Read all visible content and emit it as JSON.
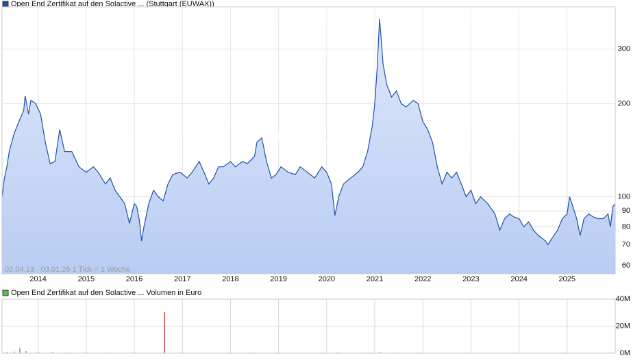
{
  "chart_data": [
    {
      "type": "line",
      "title": "Open End Zertifikat auf den Solactive ... (Stuttgart (EUWAX))",
      "annotation": "02.04.13 - 03.01.26   1 Tick = 1 Woche",
      "watermark": "ARIVA.DE",
      "color": "#1f4fa8",
      "fill": "#b9cdf3",
      "yscale": "log",
      "grid": true,
      "xlim": [
        2013.25,
        2026.0
      ],
      "xticks": [
        2014,
        2015,
        2016,
        2017,
        2018,
        2019,
        2020,
        2021,
        2022,
        2023,
        2024,
        2025
      ],
      "ylim": [
        56.4,
        411
      ],
      "yticks": [
        60,
        70,
        80,
        90,
        100,
        200,
        300
      ],
      "x": [
        2013.25,
        2013.3,
        2013.35,
        2013.4,
        2013.5,
        2013.6,
        2013.7,
        2013.73,
        2013.8,
        2013.85,
        2013.95,
        2014.05,
        2014.15,
        2014.25,
        2014.35,
        2014.45,
        2014.55,
        2014.7,
        2014.85,
        2015.0,
        2015.15,
        2015.25,
        2015.4,
        2015.5,
        2015.6,
        2015.7,
        2015.8,
        2015.9,
        2016.0,
        2016.05,
        2016.1,
        2016.15,
        2016.2,
        2016.3,
        2016.4,
        2016.5,
        2016.6,
        2016.7,
        2016.8,
        2016.95,
        2017.1,
        2017.2,
        2017.35,
        2017.45,
        2017.55,
        2017.65,
        2017.75,
        2017.85,
        2018.0,
        2018.1,
        2018.25,
        2018.35,
        2018.5,
        2018.55,
        2018.65,
        2018.75,
        2018.85,
        2018.95,
        2019.05,
        2019.2,
        2019.35,
        2019.45,
        2019.6,
        2019.75,
        2019.9,
        2020.0,
        2020.1,
        2020.17,
        2020.25,
        2020.35,
        2020.5,
        2020.65,
        2020.75,
        2020.85,
        2020.95,
        2021.0,
        2021.05,
        2021.1,
        2021.13,
        2021.17,
        2021.25,
        2021.35,
        2021.45,
        2021.55,
        2021.65,
        2021.8,
        2021.9,
        2022.0,
        2022.1,
        2022.2,
        2022.3,
        2022.4,
        2022.5,
        2022.6,
        2022.7,
        2022.8,
        2022.9,
        2023.0,
        2023.1,
        2023.2,
        2023.35,
        2023.5,
        2023.6,
        2023.7,
        2023.8,
        2023.9,
        2024.0,
        2024.1,
        2024.2,
        2024.3,
        2024.4,
        2024.55,
        2024.6,
        2024.7,
        2024.8,
        2024.9,
        2025.0,
        2025.05,
        2025.1,
        2025.2,
        2025.27,
        2025.35,
        2025.45,
        2025.55,
        2025.65,
        2025.75,
        2025.85,
        2025.9,
        2025.95,
        2026.0
      ],
      "values": [
        100,
        115,
        125,
        140,
        160,
        175,
        190,
        212,
        185,
        205,
        200,
        185,
        150,
        128,
        130,
        165,
        140,
        140,
        125,
        120,
        125,
        120,
        110,
        115,
        105,
        100,
        95,
        82,
        95,
        93,
        85,
        72,
        80,
        95,
        105,
        100,
        97,
        110,
        118,
        120,
        115,
        120,
        130,
        120,
        110,
        115,
        125,
        125,
        130,
        125,
        130,
        128,
        135,
        150,
        155,
        130,
        115,
        118,
        125,
        120,
        118,
        125,
        120,
        115,
        125,
        120,
        110,
        87,
        100,
        110,
        115,
        120,
        125,
        140,
        170,
        200,
        260,
        376,
        330,
        270,
        230,
        210,
        220,
        200,
        195,
        205,
        200,
        175,
        165,
        150,
        125,
        110,
        120,
        115,
        120,
        110,
        100,
        105,
        95,
        100,
        95,
        88,
        78,
        85,
        88,
        86,
        85,
        80,
        83,
        78,
        75,
        72,
        70,
        74,
        78,
        85,
        88,
        100,
        95,
        85,
        75,
        85,
        88,
        86,
        85,
        85,
        88,
        80,
        93,
        95
      ]
    },
    {
      "type": "bar",
      "title": "Open End Zertifikat auf den Solactive ... Volumen in Euro",
      "color": "#3aa63a",
      "grid": true,
      "xlim": [
        2013.25,
        2026.0
      ],
      "xticks": [
        2014,
        2015,
        2016,
        2017,
        2018,
        2019,
        2020,
        2021,
        2022,
        2023,
        2024,
        2025
      ],
      "ylim": [
        0,
        40000000
      ],
      "yticks": [
        {
          "value": 0,
          "label": "0M"
        },
        {
          "value": 20000000,
          "label": "20M"
        },
        {
          "value": 40000000,
          "label": "40M"
        }
      ],
      "x": [
        2013.35,
        2013.5,
        2013.62,
        2013.75,
        2014.0,
        2014.3,
        2014.6,
        2015.0,
        2015.5,
        2016.0,
        2016.63,
        2017.0,
        2017.5,
        2018.0,
        2018.5,
        2019.0,
        2019.5,
        2020.2,
        2020.8,
        2021.1,
        2021.5,
        2022.0,
        2022.5,
        2023.0,
        2023.5,
        2024.0,
        2024.5,
        2025.0,
        2025.5,
        2025.9
      ],
      "values": [
        800000,
        1200000,
        4000000,
        1500000,
        900000,
        700000,
        500000,
        600000,
        400000,
        500000,
        30500000,
        400000,
        300000,
        300000,
        400000,
        300000,
        300000,
        600000,
        400000,
        900000,
        400000,
        300000,
        300000,
        200000,
        200000,
        200000,
        300000,
        300000,
        200000,
        300000
      ],
      "colors": [
        "#3aa63a",
        "#3aa63a",
        "#3aa63a",
        "#3aa63a",
        "#3aa63a",
        "#3aa63a",
        "#3aa63a",
        "#3aa63a",
        "#3aa63a",
        "#3aa63a",
        "#cc2222",
        "#3aa63a",
        "#3aa63a",
        "#3aa63a",
        "#3aa63a",
        "#3aa63a",
        "#3aa63a",
        "#3aa63a",
        "#3aa63a",
        "#3aa63a",
        "#3aa63a",
        "#3aa63a",
        "#3aa63a",
        "#3aa63a",
        "#3aa63a",
        "#3aa63a",
        "#3aa63a",
        "#3aa63a",
        "#3aa63a",
        "#3aa63a"
      ]
    }
  ]
}
